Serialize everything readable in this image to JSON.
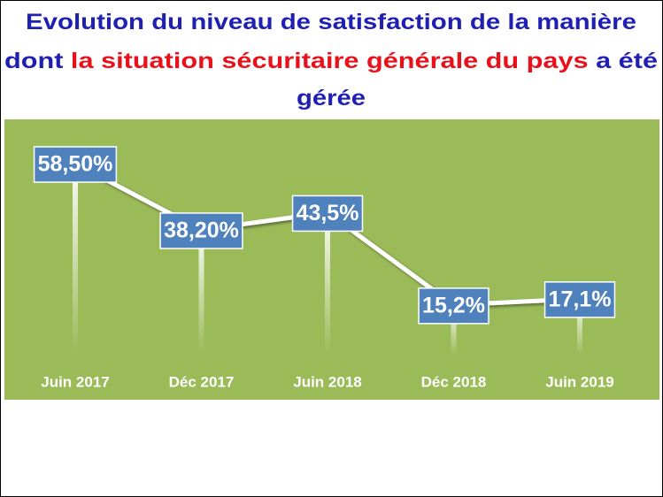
{
  "chart_data": {
    "type": "line",
    "title_lines": [
      [
        {
          "text": "Evolution du niveau de satisfaction de la manière",
          "color": "#1f1fb4"
        }
      ],
      [
        {
          "text": "dont",
          "color": "#1f1fb4"
        },
        {
          "text": "la  situation sécuritaire générale du pays",
          "color": "#e8101a"
        },
        {
          "text": "a été",
          "color": "#1f1fb4"
        }
      ],
      [
        {
          "text": "gérée",
          "color": "#1f1fb4"
        }
      ]
    ],
    "categories": [
      "Juin 2017",
      "Déc 2017",
      "Juin 2018",
      "Déc 2018",
      "Juin 2019"
    ],
    "values": [
      58.5,
      38.2,
      43.5,
      15.2,
      17.1
    ],
    "value_labels": [
      "58,50%",
      "38,20%",
      "43,5%",
      "15,2%",
      "17,1%"
    ],
    "color": "#ffffff",
    "label_color": "#4f81bd",
    "background": "#9bbb59"
  }
}
